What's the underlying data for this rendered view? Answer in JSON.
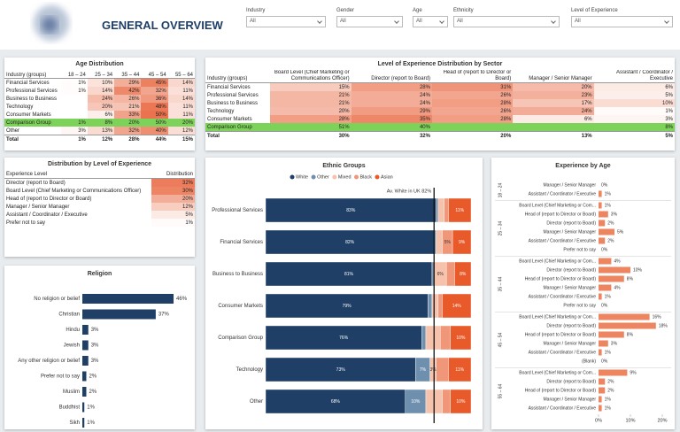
{
  "header": {
    "title": "GENERAL OVERVIEW"
  },
  "filters": [
    {
      "label": "Industry",
      "value": "All"
    },
    {
      "label": "Gender",
      "value": "All"
    },
    {
      "label": "Age",
      "value": "All"
    },
    {
      "label": "Ethnicity",
      "value": "All"
    },
    {
      "label": "Level of Experience",
      "value": "All"
    }
  ],
  "tables": {
    "age_distribution": {
      "title": "Age Distribution",
      "columns": [
        "Industry (groups)",
        "18 – 24",
        "25 – 34",
        "35 – 44",
        "45 – 54",
        "55 – 64"
      ],
      "rows": [
        [
          "Financial Services",
          "1%",
          "10%",
          "29%",
          "45%",
          "14%"
        ],
        [
          "Professional Services",
          "1%",
          "14%",
          "42%",
          "32%",
          "11%"
        ],
        [
          "Business to Business",
          null,
          "24%",
          "26%",
          "36%",
          "14%"
        ],
        [
          "Technology",
          null,
          "20%",
          "21%",
          "48%",
          "11%"
        ],
        [
          "Consumer Markets",
          null,
          "6%",
          "33%",
          "50%",
          "11%"
        ],
        [
          "Comparison Group",
          "1%",
          "8%",
          "20%",
          "50%",
          "20%"
        ],
        [
          "Other",
          "3%",
          "13%",
          "32%",
          "40%",
          "12%"
        ]
      ],
      "total": [
        "Total",
        "1%",
        "12%",
        "28%",
        "44%",
        "15%"
      ],
      "highlight_row": 5,
      "highlight_color": "#7dd35a",
      "heat_color": "#e8643c"
    },
    "experience_by_sector": {
      "title": "Level of Experience Distribution by Sector",
      "columns": [
        "Industry (groups)",
        "Board Level (Chief Marketing or Communications Officer)",
        "Director (report to Board)",
        "Head of (report to Director or Board)",
        "Manager / Senior Manager",
        "Assistant / Coordinator / Executive"
      ],
      "rows": [
        [
          "Financial Services",
          "15%",
          "28%",
          "31%",
          "20%",
          "6%"
        ],
        [
          "Professional Services",
          "21%",
          "24%",
          "26%",
          "23%",
          "5%"
        ],
        [
          "Business to Business",
          "21%",
          "24%",
          "28%",
          "17%",
          "10%"
        ],
        [
          "Technology",
          "20%",
          "29%",
          "26%",
          "24%",
          "1%"
        ],
        [
          "Consumer Markets",
          "28%",
          "35%",
          "28%",
          "6%",
          "3%"
        ],
        [
          "Comparison Group",
          "51%",
          "40%",
          null,
          null,
          "8%"
        ]
      ],
      "total": [
        "Total",
        "30%",
        "32%",
        "20%",
        "13%",
        "5%"
      ],
      "highlight_row": 5,
      "highlight_color": "#7dd35a",
      "heat_color": "#e8643c"
    },
    "distribution_by_level": {
      "title": "Distribution by Level of Experience",
      "columns": [
        "Experience Level",
        "Distribution"
      ],
      "rows": [
        [
          "Director (report to Board)",
          "32%"
        ],
        [
          "Board Level (Chief Marketing or Communications Officer)",
          "30%"
        ],
        [
          "Head of (report to Director or Board)",
          "20%"
        ],
        [
          "Manager / Senior Manager",
          "12%"
        ],
        [
          "Assistant / Coordinator / Executive",
          "5%"
        ],
        [
          "Prefer not to say",
          "1%"
        ]
      ],
      "heat_color": "#e8643c"
    }
  },
  "chart_data": [
    {
      "type": "hbar",
      "title": "Religion",
      "categories": [
        "No religion or belief",
        "Christian",
        "Hindu",
        "Jewish",
        "Any other religion or belief",
        "Prefer not to say",
        "Muslim",
        "Buddhist",
        "Sikh"
      ],
      "values": [
        46,
        37,
        3,
        3,
        3,
        2,
        2,
        1,
        1
      ],
      "value_labels": [
        "46%",
        "37%",
        "3%",
        "3%",
        "3%",
        "2%",
        "2%",
        "1%",
        "1%"
      ],
      "color": "#1f3f66",
      "xlim": [
        0,
        50
      ]
    },
    {
      "type": "stacked-hbar",
      "title": "Ethnic Groups",
      "categories": [
        "Professional Services",
        "Financial Services",
        "Business to Business",
        "Consumer Markets",
        "Comparison Group",
        "Technology",
        "Other"
      ],
      "series": [
        {
          "name": "White",
          "color": "#1f3f66",
          "values": [
            83,
            82,
            81,
            79,
            76,
            73,
            68
          ],
          "value_labels": [
            "83%",
            "82%",
            "81%",
            "79%",
            "76%",
            "73%",
            "68%"
          ]
        },
        {
          "name": "Other",
          "color": "#6f8fae",
          "values": [
            1,
            1,
            1,
            2,
            2,
            7,
            10
          ],
          "value_labels": [
            null,
            null,
            null,
            null,
            null,
            "7%",
            "10%"
          ]
        },
        {
          "name": "Mixed",
          "color": "#f6c2ac",
          "values": [
            3,
            3,
            6,
            3,
            7,
            3,
            8
          ],
          "value_labels": [
            null,
            null,
            "6%",
            null,
            null,
            "3%",
            null
          ]
        },
        {
          "name": "Black",
          "color": "#f0977a",
          "values": [
            2,
            5,
            4,
            2,
            5,
            6,
            4
          ],
          "value_labels": [
            null,
            "5%",
            null,
            null,
            null,
            null,
            null
          ]
        },
        {
          "name": "Asian",
          "color": "#e85a2a",
          "values": [
            11,
            9,
            8,
            14,
            10,
            11,
            10
          ],
          "value_labels": [
            "11%",
            "9%",
            "8%",
            "14%",
            "10%",
            "11%",
            "10%"
          ]
        }
      ],
      "xlim": [
        0,
        100
      ],
      "legend": "top",
      "reference": {
        "value": 82,
        "label": "Av. White in UK 82%"
      }
    },
    {
      "type": "grouped-hbar",
      "title": "Experience by Age",
      "color": "#ec8560",
      "groups": [
        {
          "name": "18 – 24",
          "categories": [
            "Manager / Senior Manager",
            "Assistant / Coordinator / Executive"
          ],
          "values": [
            0,
            1
          ],
          "value_labels": [
            "0%",
            "1%"
          ]
        },
        {
          "name": "25 – 34",
          "categories": [
            "Board Level (Chief Marketing or Com...",
            "Head of (report to Director or Board)",
            "Director (report to Board)",
            "Manager / Senior Manager",
            "Assistant / Coordinator / Executive",
            "Prefer not to say"
          ],
          "values": [
            1,
            3,
            2,
            5,
            2,
            0
          ],
          "value_labels": [
            "1%",
            "3%",
            "2%",
            "5%",
            "2%",
            "0%"
          ]
        },
        {
          "name": "35 – 44",
          "categories": [
            "Board Level (Chief Marketing or Com...",
            "Director (report to Board)",
            "Head of (report to Director or Board)",
            "Manager / Senior Manager",
            "Assistant / Coordinator / Executive",
            "Prefer not to say"
          ],
          "values": [
            4,
            10,
            8,
            4,
            1,
            0
          ],
          "value_labels": [
            "4%",
            "10%",
            "8%",
            "4%",
            "1%",
            "0%"
          ]
        },
        {
          "name": "45 – 54",
          "categories": [
            "Board Level (Chief Marketing or Com...",
            "Director (report to Board)",
            "Head of (report to Director or Board)",
            "Manager / Senior Manager",
            "Assistant / Coordinator / Executive",
            "(Blank)"
          ],
          "values": [
            16,
            18,
            8,
            3,
            1,
            0
          ],
          "value_labels": [
            "16%",
            "18%",
            "8%",
            "3%",
            "1%",
            "0%"
          ]
        },
        {
          "name": "55 – 64",
          "categories": [
            "Board Level (Chief Marketing or Com...",
            "Director (report to Board)",
            "Head of (report to Director or Board)",
            "Manager / Senior Manager",
            "Assistant / Coordinator / Executive"
          ],
          "values": [
            9,
            2,
            2,
            1,
            1
          ],
          "value_labels": [
            "9%",
            "2%",
            "2%",
            "1%",
            "1%"
          ]
        }
      ],
      "xlim": [
        0,
        20
      ],
      "xticks": [
        {
          "value": 0,
          "label": "0%"
        },
        {
          "value": 10,
          "label": "10%"
        },
        {
          "value": 20,
          "label": "20%"
        }
      ]
    }
  ]
}
